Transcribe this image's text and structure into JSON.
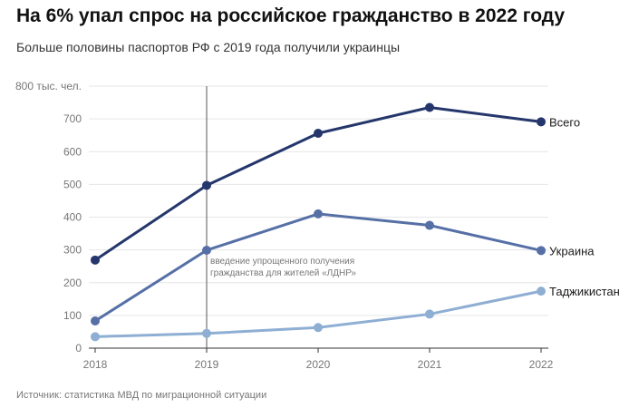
{
  "header": {
    "title": "На 6% упал спрос на российское гражданство в 2022 году",
    "subtitle": "Больше половины паспортов РФ с 2019 года получили украинцы"
  },
  "footer": {
    "source": "Источник: статистика МВД по миграционной ситуации"
  },
  "chart_data": {
    "type": "line",
    "x": [
      "2018",
      "2019",
      "2020",
      "2021",
      "2022"
    ],
    "y_unit_label": "800 тыс. чел.",
    "ylim": [
      0,
      800
    ],
    "y_ticks": [
      0,
      100,
      200,
      300,
      400,
      500,
      600,
      700
    ],
    "grid": true,
    "series": [
      {
        "name": "Всего",
        "values": [
          269,
          497,
          656,
          735,
          691
        ],
        "color": "#24366b"
      },
      {
        "name": "Украина",
        "values": [
          83,
          299,
          410,
          375,
          298
        ],
        "color": "#5670a6"
      },
      {
        "name": "Таджикистан",
        "values": [
          35,
          45,
          63,
          104,
          174
        ],
        "color": "#8eaed3"
      }
    ],
    "annotation": {
      "x": "2019",
      "lines": [
        "введение упрощенного получения",
        "гражданства для жителей «ЛДНР»"
      ]
    }
  }
}
